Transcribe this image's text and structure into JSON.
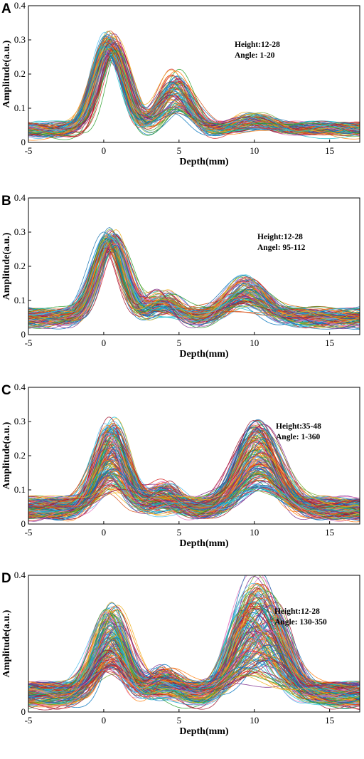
{
  "chart_data": [
    {
      "panel": "A",
      "type": "line",
      "xlabel": "Depth(mm)",
      "ylabel": "Amplitude(a.u.)",
      "xlim": [
        -5,
        17
      ],
      "ylim": [
        0,
        0.4
      ],
      "xticks": [
        "-5",
        "0",
        "5",
        "10",
        "15"
      ],
      "yticks": [
        "0",
        "0.1",
        "0.2",
        "0.3",
        "0.4"
      ],
      "annotation": [
        "Height:12-28",
        "Angle:  1-20"
      ],
      "annotation_position": "top-right",
      "curves": 90,
      "shape": {
        "baseline": [
          0.02,
          0.05
        ],
        "peaks": [
          {
            "x": 0.5,
            "amp": [
              0.25,
              0.32
            ],
            "width": 0.95
          },
          {
            "x": 4.8,
            "amp": [
              0.09,
              0.21
            ],
            "width": 1.0
          },
          {
            "x": 10.0,
            "amp": [
              0.04,
              0.08
            ],
            "width": 1.3
          },
          {
            "x": 14.5,
            "amp": [
              0.02,
              0.05
            ],
            "width": 2.0
          }
        ]
      }
    },
    {
      "panel": "B",
      "type": "line",
      "xlabel": "Depth(mm)",
      "ylabel": "Amplitude(a.u.)",
      "xlim": [
        -5,
        17
      ],
      "ylim": [
        0,
        0.4
      ],
      "xticks": [
        "-5",
        "0",
        "5",
        "10",
        "15"
      ],
      "yticks": [
        "0",
        "0.1",
        "0.2",
        "0.3",
        "0.4"
      ],
      "annotation": [
        "Height:12-28",
        "Angel:  95-112"
      ],
      "annotation_position": "top-right",
      "curves": 110,
      "shape": {
        "baseline": [
          0.03,
          0.07
        ],
        "peaks": [
          {
            "x": 0.5,
            "amp": [
              0.25,
              0.3
            ],
            "width": 0.95
          },
          {
            "x": 4.0,
            "amp": [
              0.06,
              0.12
            ],
            "width": 0.9
          },
          {
            "x": 9.5,
            "amp": [
              0.08,
              0.17
            ],
            "width": 1.2
          }
        ]
      }
    },
    {
      "panel": "C",
      "type": "line",
      "xlabel": "Depth(mm)",
      "ylabel": "Amplitude(a.u.)",
      "xlim": [
        -5,
        17
      ],
      "ylim": [
        0,
        0.4
      ],
      "xticks": [
        "-5",
        "0",
        "5",
        "10",
        "15"
      ],
      "yticks": [
        "0",
        "0.1",
        "0.2",
        "0.3",
        "0.4"
      ],
      "annotation": [
        "Height:35-48",
        "Angle:  1-360"
      ],
      "annotation_position": "top-right",
      "curves": 160,
      "shape": {
        "baseline": [
          0.02,
          0.07
        ],
        "peaks": [
          {
            "x": 0.5,
            "amp": [
              0.1,
              0.3
            ],
            "width": 1.0
          },
          {
            "x": 4.0,
            "amp": [
              0.03,
              0.12
            ],
            "width": 0.9
          },
          {
            "x": 10.3,
            "amp": [
              0.1,
              0.3
            ],
            "width": 1.3
          }
        ]
      }
    },
    {
      "panel": "D",
      "type": "line",
      "xlabel": "Depth(mm)",
      "ylabel": "Amplitude(a.u.)",
      "xlim": [
        -5,
        17
      ],
      "ylim": [
        0,
        0.4
      ],
      "xticks": [
        "-5",
        "0",
        "5",
        "10",
        "15"
      ],
      "yticks": [
        "0",
        "0.4"
      ],
      "annotation": [
        "Height:12-28",
        "Angle:  130-350"
      ],
      "annotation_position": "top-right",
      "curves": 160,
      "shape": {
        "baseline": [
          0.02,
          0.08
        ],
        "peaks": [
          {
            "x": 0.5,
            "amp": [
              0.12,
              0.31
            ],
            "width": 1.0
          },
          {
            "x": 4.0,
            "amp": [
              0.03,
              0.13
            ],
            "width": 0.9
          },
          {
            "x": 9.5,
            "amp": [
              0.08,
              0.3
            ],
            "width": 1.1
          },
          {
            "x": 11.2,
            "amp": [
              0.06,
              0.3
            ],
            "width": 1.1
          }
        ]
      }
    }
  ],
  "palette": [
    "#0072bd",
    "#d95319",
    "#edb120",
    "#7e2f8e",
    "#77ac30",
    "#4dbeee",
    "#a2142f",
    "#1f77b4",
    "#ff7f0e",
    "#2ca02c",
    "#d62728",
    "#17becf",
    "#e377c2"
  ]
}
